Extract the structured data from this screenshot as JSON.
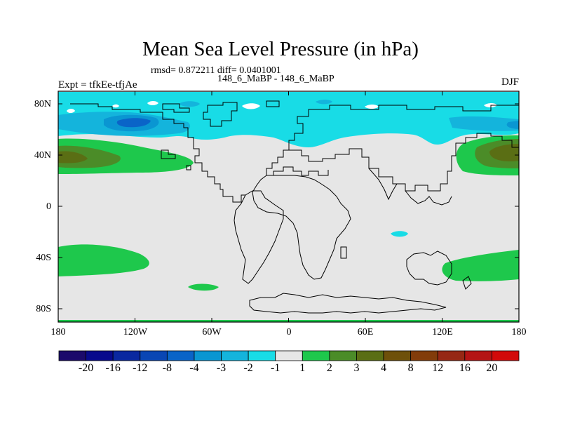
{
  "chart_data": {
    "type": "heatmap",
    "title": "Mean Sea Level Pressure (in hPa)",
    "subtitle_stats": "rmsd= 0.872211 diff= 0.0401001",
    "experiments": "148_6_MaBP - 148_6_MaBP",
    "left_label": "Expt = tfkEe-tfjAe",
    "right_label": "DJF",
    "x_ticks": [
      "180",
      "120W",
      "60W",
      "0",
      "60E",
      "120E",
      "180"
    ],
    "y_ticks": [
      "80N",
      "40N",
      "0",
      "40S",
      "80S"
    ],
    "xlim": [
      -180,
      180
    ],
    "ylim": [
      -90,
      90
    ],
    "colorbar": {
      "labels": [
        "-20",
        "-16",
        "-12",
        "-8",
        "-4",
        "-3",
        "-2",
        "-1",
        "1",
        "2",
        "3",
        "4",
        "8",
        "12",
        "16",
        "20"
      ],
      "colors": [
        "#1b0a6b",
        "#080a8c",
        "#0a28a0",
        "#0a46b4",
        "#0a64c8",
        "#0a96d2",
        "#14b4dc",
        "#18dce6",
        "#e6e6e6",
        "#1ec84c",
        "#4b8c28",
        "#5a6e14",
        "#6e500a",
        "#823c0a",
        "#962814",
        "#b41414",
        "#d20a0a"
      ]
    }
  }
}
